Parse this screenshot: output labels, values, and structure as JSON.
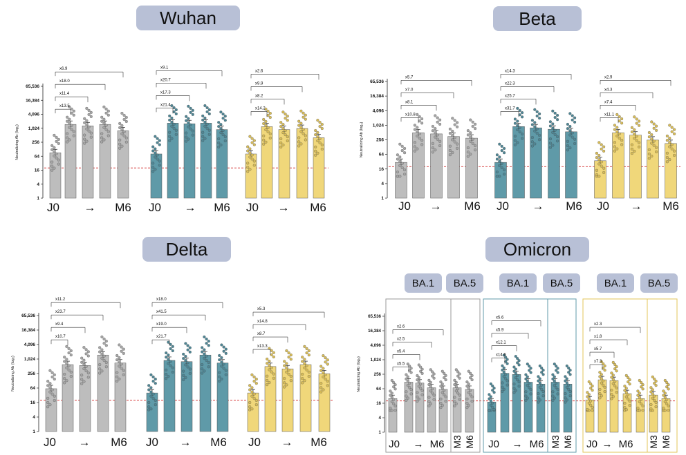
{
  "figure": {
    "colors": {
      "grey": "#bdbdbd",
      "teal": "#5f9aa8",
      "yellow": "#f0d77a",
      "dot_grey": "#a6a6a6",
      "dot_teal": "#4f8796",
      "dot_yellow": "#d9bd58",
      "threshold": "#d63b3b"
    },
    "ylabel": "Neutralizing Ab (log₂)",
    "ytick_labels": [
      "65,536",
      "16,384",
      "4,096",
      "1,024",
      "256",
      "64",
      "16",
      "4",
      "1"
    ],
    "xtick_labels": [
      "J0",
      "→",
      "M6"
    ],
    "omicron_xtick_labels": [
      "J0",
      "→",
      "M6",
      "M3",
      "M6"
    ],
    "subvariant_labels": [
      "BA.1",
      "BA.5"
    ]
  },
  "chart_data": [
    {
      "title": "Wuhan",
      "type": "bar",
      "y_scale": "log2",
      "ylim": [
        1,
        65536
      ],
      "threshold": 20,
      "groups": [
        {
          "color": "grey",
          "values": [
            90,
            1500,
            1300,
            1500,
            800
          ],
          "fold": [
            "x13.5",
            "x11.4",
            "x18.0",
            "x6.9"
          ]
        },
        {
          "color": "teal",
          "values": [
            80,
            1700,
            1600,
            1700,
            900
          ],
          "fold": [
            "x21.4",
            "x17.3",
            "x20.7",
            "x9.1"
          ]
        },
        {
          "color": "yellow",
          "values": [
            80,
            1200,
            900,
            1000,
            400
          ],
          "fold": [
            "x14.2",
            "x8.2",
            "x9.9",
            "x2.6"
          ]
        }
      ]
    },
    {
      "title": "Beta",
      "type": "bar",
      "y_scale": "log2",
      "ylim": [
        1,
        65536
      ],
      "threshold": 20,
      "groups": [
        {
          "color": "grey",
          "values": [
            30,
            500,
            450,
            350,
            300
          ],
          "fold": [
            "x10.8",
            "x8.1",
            "x7.0",
            "x5.7"
          ]
        },
        {
          "color": "teal",
          "values": [
            30,
            900,
            800,
            700,
            550
          ],
          "fold": [
            "x31.7",
            "x25.7",
            "x22.3",
            "x14.3"
          ]
        },
        {
          "color": "yellow",
          "values": [
            35,
            500,
            400,
            250,
            180
          ],
          "fold": [
            "x11.1",
            "x7.4",
            "x4.3",
            "x2.9"
          ]
        }
      ]
    },
    {
      "title": "Delta",
      "type": "bar",
      "y_scale": "log2",
      "ylim": [
        1,
        65536
      ],
      "threshold": 20,
      "groups": [
        {
          "color": "grey",
          "values": [
            60,
            600,
            550,
            1500,
            700
          ],
          "fold": [
            "x10.7",
            "x9.4",
            "x23.7",
            "x11.2"
          ]
        },
        {
          "color": "teal",
          "values": [
            40,
            900,
            800,
            1500,
            700
          ],
          "fold": [
            "x21.7",
            "x19.0",
            "x41.5",
            "x18.0"
          ]
        },
        {
          "color": "yellow",
          "values": [
            40,
            500,
            400,
            600,
            250
          ],
          "fold": [
            "x13.3",
            "x8.7",
            "x14.8",
            "x5.3"
          ]
        }
      ]
    },
    {
      "title": "Omicron",
      "type": "bar",
      "y_scale": "log2",
      "ylim": [
        1,
        65536
      ],
      "threshold": 20,
      "groups": [
        {
          "color": "grey",
          "values": [
            25,
            120,
            110,
            70,
            60,
            70,
            60
          ],
          "fold": [
            "x5.5",
            "x5.4",
            "x2.5",
            "x2.6"
          ]
        },
        {
          "color": "teal",
          "values": [
            18,
            280,
            250,
            120,
            100,
            120,
            100
          ],
          "fold": [
            "x14.6",
            "x12.1",
            "x5.9",
            "x5.6"
          ]
        },
        {
          "color": "yellow",
          "values": [
            22,
            150,
            140,
            40,
            25,
            35,
            25
          ],
          "fold": [
            "x7.3",
            "x5.7",
            "x1.8",
            "x2.3"
          ]
        }
      ]
    }
  ]
}
